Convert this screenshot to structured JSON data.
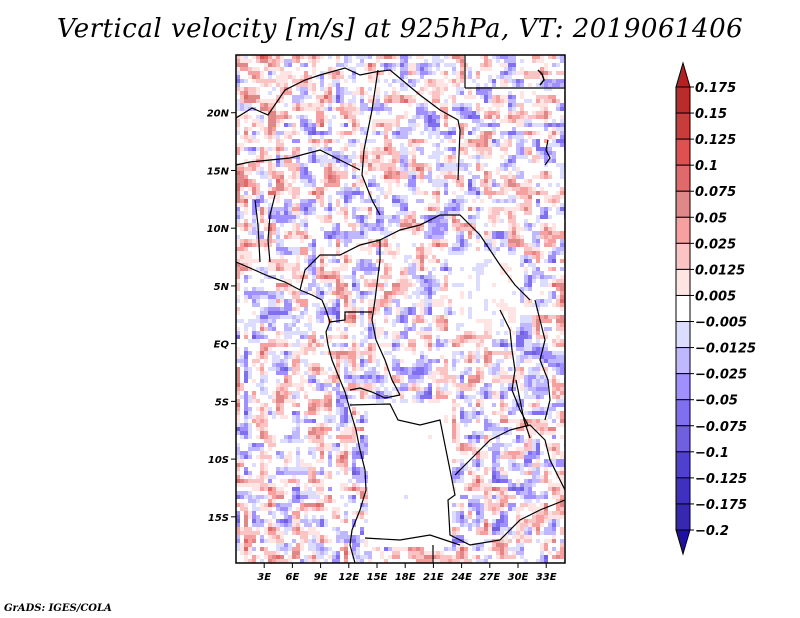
{
  "title": "Vertical velocity [m/s] at 925hPa, VT: 2019061406",
  "footer": "GrADS: IGES/COLA",
  "map": {
    "region": "Central Africa",
    "lon_range": [
      0,
      35
    ],
    "lat_range": [
      -19,
      25
    ],
    "lat_ticks": [
      {
        "value": 20,
        "label": "20N"
      },
      {
        "value": 15,
        "label": "15N"
      },
      {
        "value": 10,
        "label": "10N"
      },
      {
        "value": 5,
        "label": "5N"
      },
      {
        "value": 0,
        "label": "EQ"
      },
      {
        "value": -5,
        "label": "5S"
      },
      {
        "value": -10,
        "label": "10S"
      },
      {
        "value": -15,
        "label": "15S"
      }
    ],
    "lon_ticks": [
      {
        "value": 3,
        "label": "3E"
      },
      {
        "value": 6,
        "label": "6E"
      },
      {
        "value": 9,
        "label": "9E"
      },
      {
        "value": 12,
        "label": "12E"
      },
      {
        "value": 15,
        "label": "15E"
      },
      {
        "value": 18,
        "label": "18E"
      },
      {
        "value": 21,
        "label": "21E"
      },
      {
        "value": 24,
        "label": "24E"
      },
      {
        "value": 27,
        "label": "27E"
      },
      {
        "value": 30,
        "label": "30E"
      },
      {
        "value": 33,
        "label": "33E"
      }
    ]
  },
  "colorbar": {
    "levels": [
      "0.175",
      "0.15",
      "0.125",
      "0.1",
      "0.075",
      "0.05",
      "0.025",
      "0.0125",
      "0.005",
      "-0.005",
      "-0.0125",
      "-0.025",
      "-0.05",
      "-0.075",
      "-0.1",
      "-0.125",
      "-0.175",
      "-0.2"
    ],
    "colors": [
      "#b22222",
      "#b82c2c",
      "#c83c3c",
      "#e05050",
      "#e06a6a",
      "#e08888",
      "#f7a0a0",
      "#fbc4c4",
      "#ffe4e4",
      "#ffffff",
      "#dcdcff",
      "#c0b8ff",
      "#a090ff",
      "#8070f0",
      "#7060e0",
      "#5040d0",
      "#4030c0",
      "#3828b0",
      "#2010a0"
    ]
  }
}
